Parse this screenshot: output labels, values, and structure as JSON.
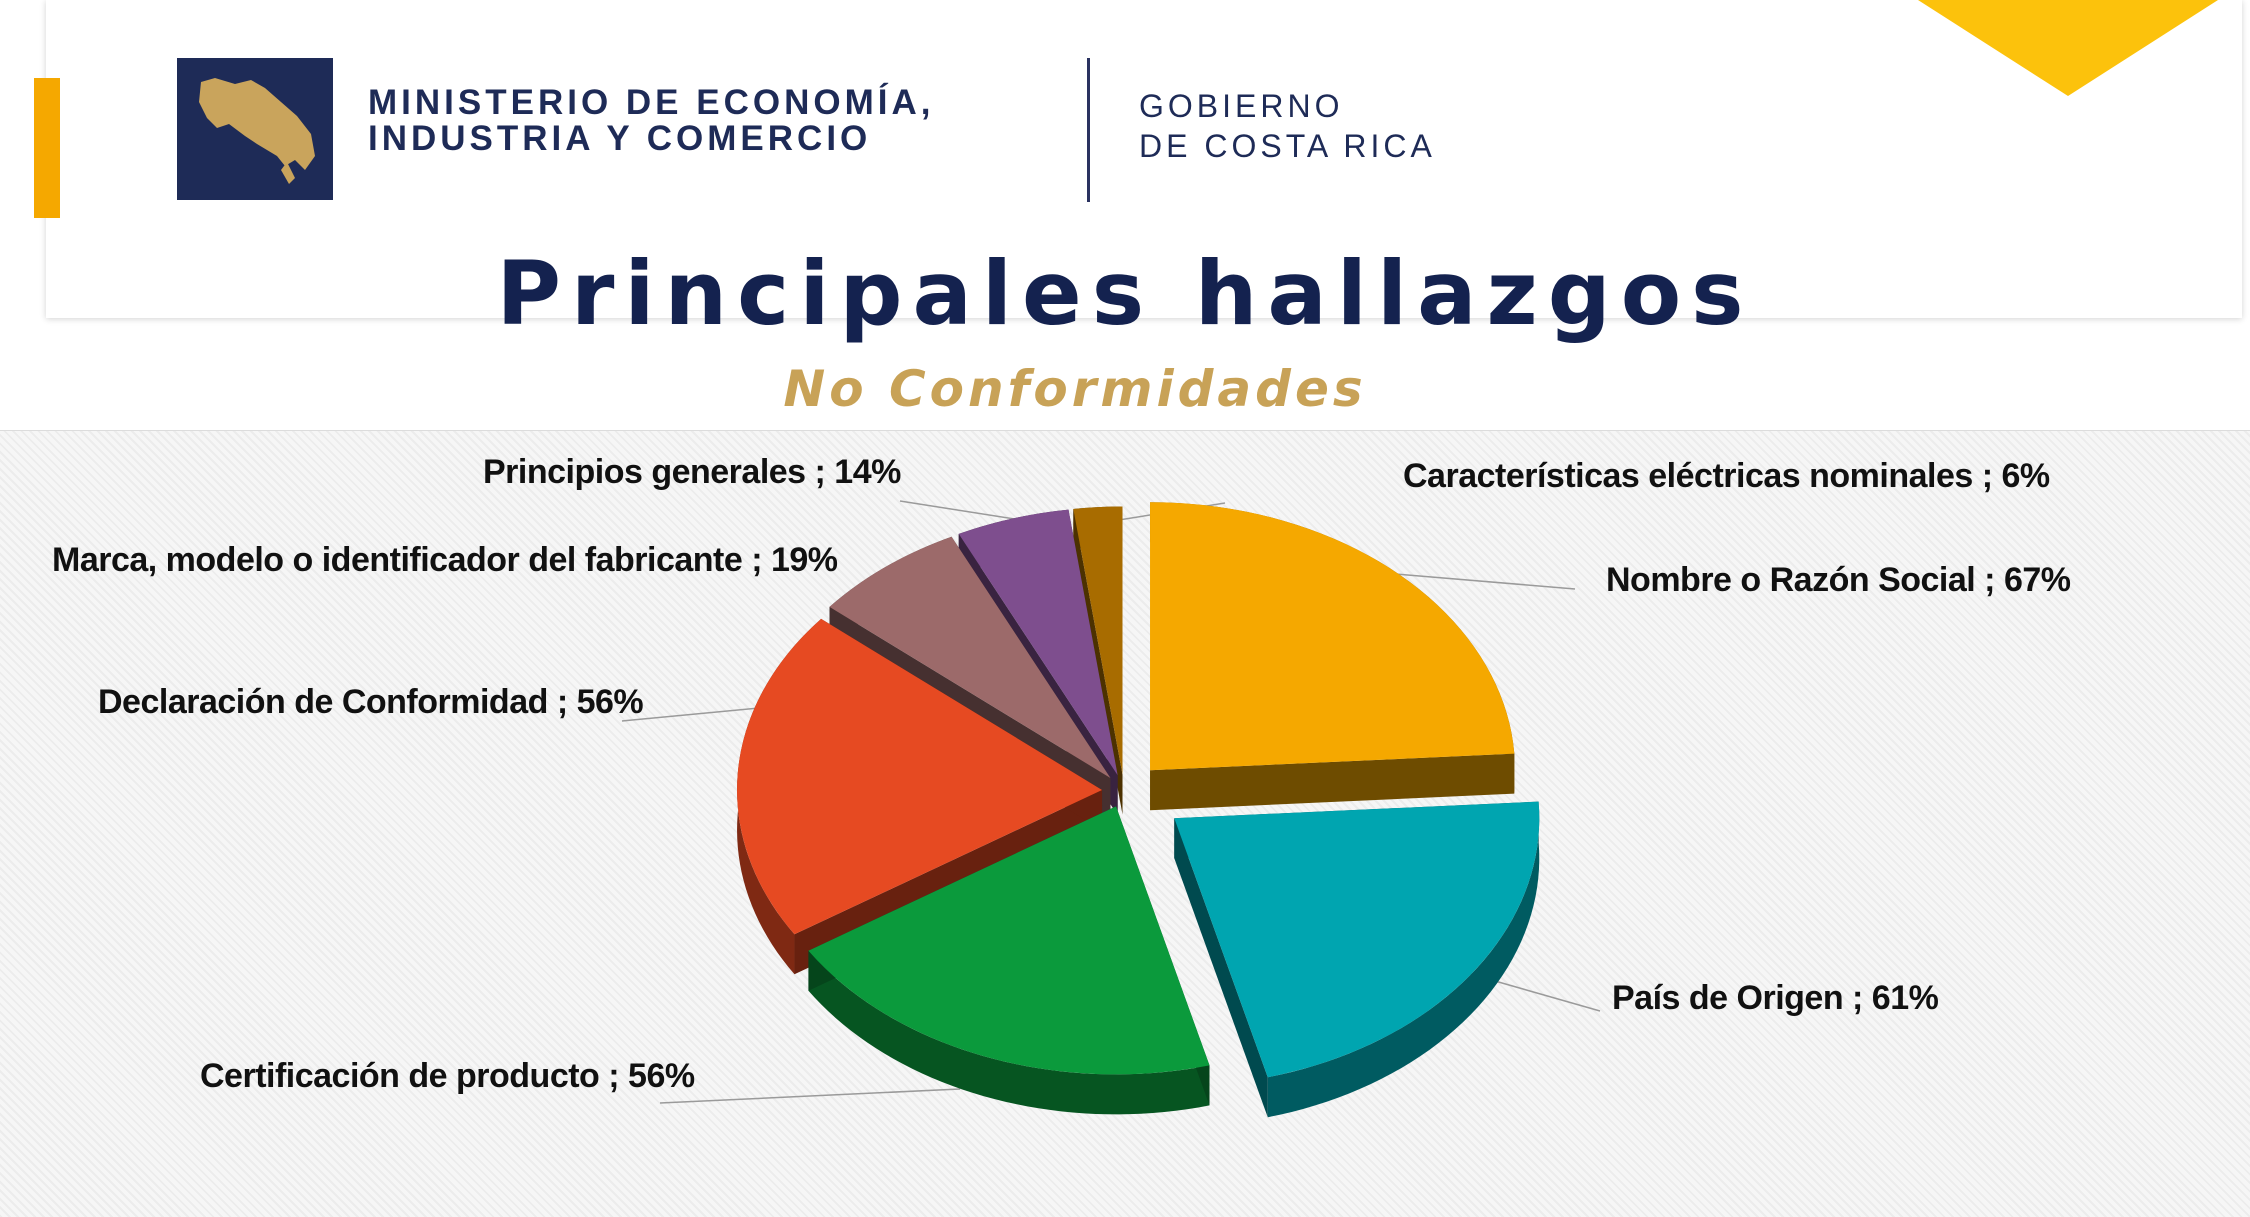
{
  "header": {
    "ministry_line1": "MINISTERIO DE ECONOMÍA,",
    "ministry_line2": "INDUSTRIA Y COMERCIO",
    "gov_line1": "GOBIERNO",
    "gov_line2": "DE COSTA RICA"
  },
  "title": "Principales hallazgos",
  "subtitle": "No Conformidades",
  "chart_data": {
    "type": "pie",
    "three_d": true,
    "separator": " ; ",
    "slices": [
      {
        "label": "Nombre o Razón Social",
        "value": 67,
        "display": "67%",
        "color": "#f5a800"
      },
      {
        "label": "País de Origen",
        "value": 61,
        "display": "61%",
        "color": "#00a5b0"
      },
      {
        "label": "Certificación de producto",
        "value": 56,
        "display": "56%",
        "color": "#0b9a3c"
      },
      {
        "label": "Declaración de Conformidad",
        "value": 56,
        "display": "56%",
        "color": "#e64a22"
      },
      {
        "label": "Marca, modelo o identificador del fabricante",
        "value": 19,
        "display": "19%",
        "color": "#9c6a6a"
      },
      {
        "label": "Principios generales",
        "value": 14,
        "display": "14%",
        "color": "#7e4e8e"
      },
      {
        "label": "Características eléctricas nominales",
        "value": 6,
        "display": "6%",
        "color": "#a86c00"
      }
    ]
  }
}
